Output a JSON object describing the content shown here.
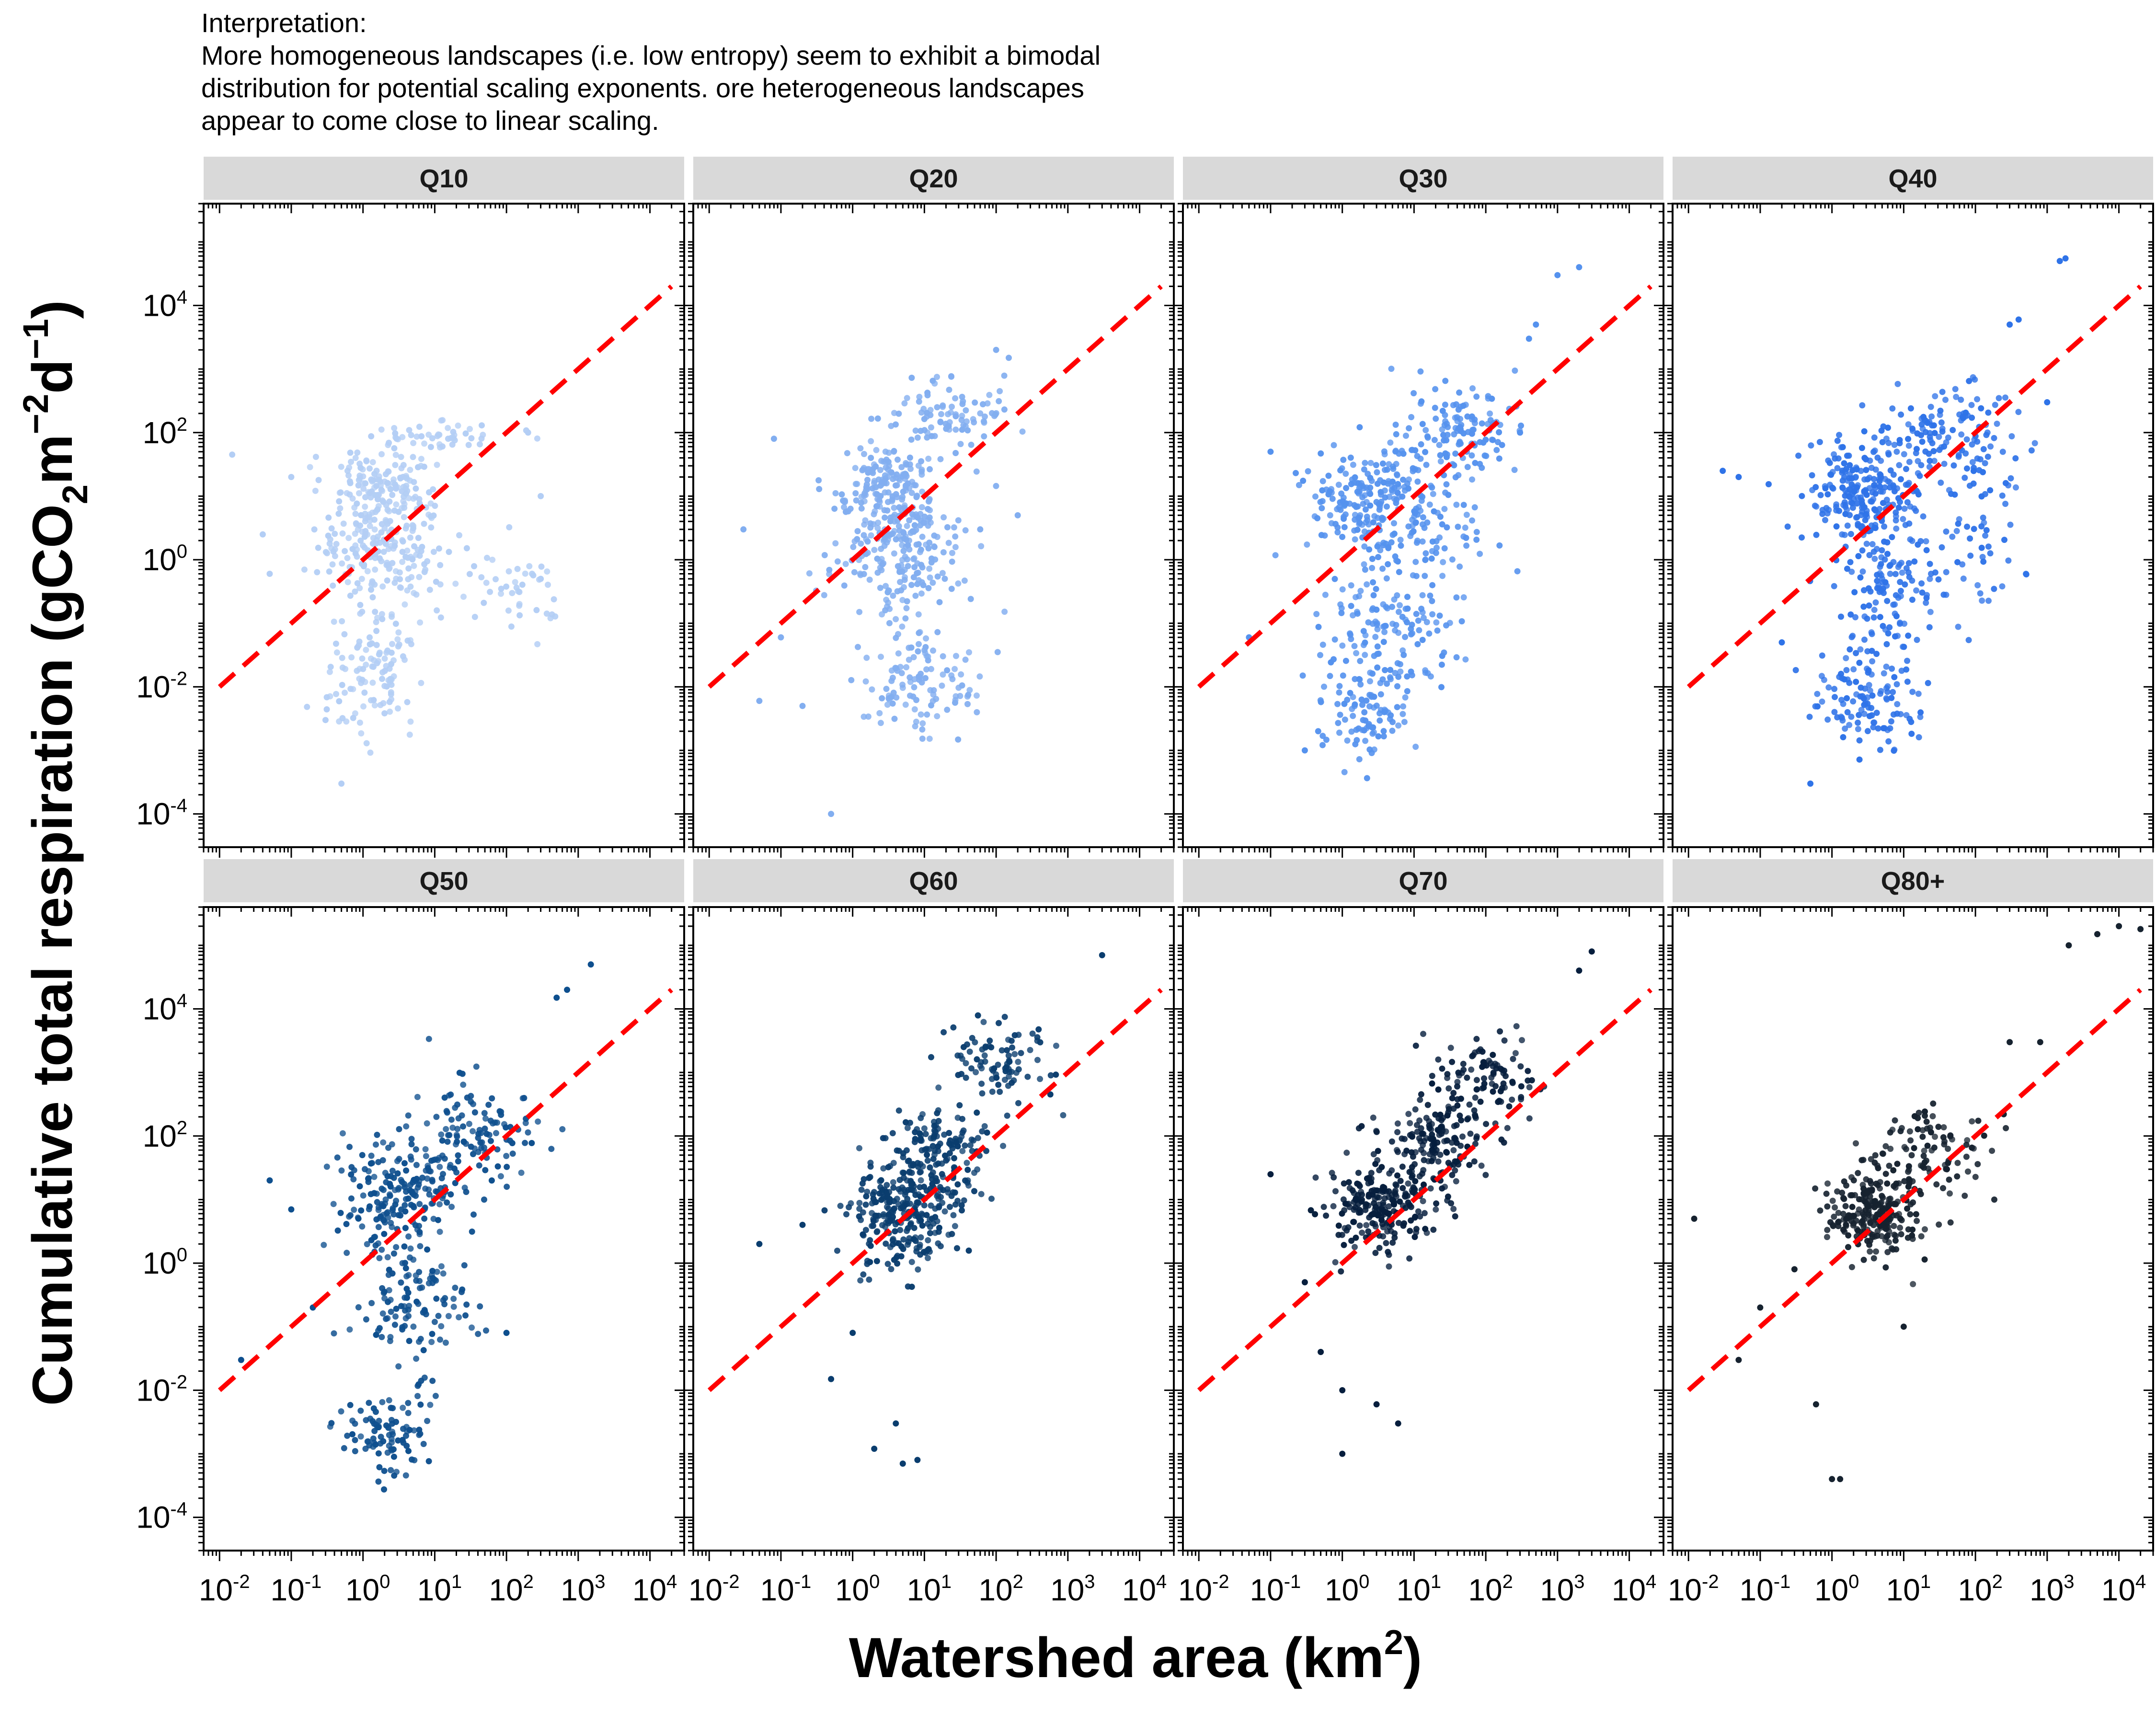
{
  "interpretation": {
    "heading": "Interpretation:",
    "lines": [
      "More homogeneous landscapes (i.e. low entropy) seem to exhibit a bimodal",
      "distribution for potential scaling exponents. ore heterogeneous landscapes",
      "appear to come close to linear scaling."
    ]
  },
  "chart_data": {
    "type": "scatter",
    "xscale": "log",
    "yscale": "log",
    "xlim": [
      0.006,
      30000
    ],
    "ylim": [
      3e-05,
      400000
    ],
    "xticks": [
      0.01,
      0.1,
      1,
      10,
      100,
      1000,
      10000
    ],
    "yticks": [
      0.0001,
      0.01,
      1,
      100,
      10000
    ],
    "x_tick_labels": [
      {
        "base": "10",
        "exp": "-2"
      },
      {
        "base": "10",
        "exp": "-1"
      },
      {
        "base": "10",
        "exp": "0"
      },
      {
        "base": "10",
        "exp": "1"
      },
      {
        "base": "10",
        "exp": "2"
      },
      {
        "base": "10",
        "exp": "3"
      },
      {
        "base": "10",
        "exp": "4"
      }
    ],
    "y_tick_labels": [
      {
        "base": "10",
        "exp": "-4"
      },
      {
        "base": "10",
        "exp": "-2"
      },
      {
        "base": "10",
        "exp": "0"
      },
      {
        "base": "10",
        "exp": "2"
      },
      {
        "base": "10",
        "exp": "4"
      }
    ],
    "xlabel": {
      "main": "Watershed area (km",
      "sup": "2",
      "end": ")"
    },
    "ylabel": {
      "parts": [
        {
          "text": "Cumulative total respiration (gCO"
        },
        {
          "text": "2",
          "shift": "sub"
        },
        {
          "text": "m"
        },
        {
          "text": "−2",
          "shift": "super"
        },
        {
          "text": "d"
        },
        {
          "text": "−1",
          "shift": "super"
        },
        {
          "text": ")"
        }
      ]
    },
    "reference_line": {
      "description": "linear scaling (slope 1)",
      "color": "#ff0000",
      "style": "dashed",
      "x": [
        0.01,
        20000
      ],
      "y": [
        0.01,
        20000
      ]
    },
    "panels": [
      {
        "label": "Q10",
        "color": "#b3cef5",
        "clusters": [
          {
            "cx": 0.3,
            "cy": 0.3,
            "sx": 0.45,
            "sy": 0.55,
            "n": 230
          },
          {
            "cx": 0.35,
            "cy": 1.25,
            "sx": 0.35,
            "sy": 0.25,
            "n": 110
          },
          {
            "cx": 0.1,
            "cy": -1.8,
            "sx": 0.35,
            "sy": 0.45,
            "n": 110
          },
          {
            "cx": 1.0,
            "cy": 1.95,
            "sx": 0.45,
            "sy": 0.12,
            "n": 40
          },
          {
            "cx": 2.2,
            "cy": -0.5,
            "sx": 0.25,
            "sy": 0.35,
            "n": 40
          }
        ],
        "points": [
          [
            0.015,
            45
          ],
          [
            0.04,
            2.5
          ],
          [
            0.05,
            0.6
          ],
          [
            0.1,
            20
          ],
          [
            0.3,
            0.003
          ],
          [
            0.5,
            0.0003
          ],
          [
            200,
            100
          ],
          [
            300,
            10
          ],
          [
            300,
            0.5
          ]
        ]
      },
      {
        "label": "Q20",
        "color": "#82aef0",
        "clusters": [
          {
            "cx": 0.6,
            "cy": 0.2,
            "sx": 0.45,
            "sy": 0.6,
            "n": 230
          },
          {
            "cx": 0.5,
            "cy": 1.2,
            "sx": 0.35,
            "sy": 0.3,
            "n": 140
          },
          {
            "cx": 1.0,
            "cy": -1.9,
            "sx": 0.45,
            "sy": 0.45,
            "n": 110
          },
          {
            "cx": 1.3,
            "cy": 2.3,
            "sx": 0.45,
            "sy": 0.25,
            "n": 90
          }
        ],
        "points": [
          [
            0.03,
            3
          ],
          [
            0.05,
            0.006
          ],
          [
            0.08,
            80
          ],
          [
            0.1,
            0.06
          ],
          [
            0.2,
            0.005
          ],
          [
            0.5,
            0.0001
          ],
          [
            60,
            3
          ],
          [
            100,
            2000
          ],
          [
            150,
            1500
          ],
          [
            200,
            5
          ]
        ]
      },
      {
        "label": "Q30",
        "color": "#5592ee",
        "clusters": [
          {
            "cx": 0.4,
            "cy": 0.9,
            "sx": 0.45,
            "sy": 0.45,
            "n": 210
          },
          {
            "cx": 0.6,
            "cy": -1.2,
            "sx": 0.45,
            "sy": 0.55,
            "n": 140
          },
          {
            "cx": 0.3,
            "cy": -2.5,
            "sx": 0.3,
            "sy": 0.4,
            "n": 80
          },
          {
            "cx": 1.6,
            "cy": 2.0,
            "sx": 0.45,
            "sy": 0.35,
            "n": 130
          },
          {
            "cx": 1.3,
            "cy": 0.3,
            "sx": 0.5,
            "sy": 0.5,
            "n": 70
          }
        ],
        "points": [
          [
            0.05,
            0.06
          ],
          [
            0.1,
            50
          ],
          [
            0.3,
            0.001
          ],
          [
            300,
            100
          ],
          [
            400,
            3000
          ],
          [
            1000,
            30000
          ],
          [
            2000,
            40000
          ],
          [
            500,
            5000
          ]
        ]
      },
      {
        "label": "Q40",
        "color": "#2f73e8",
        "clusters": [
          {
            "cx": 0.4,
            "cy": 1.0,
            "sx": 0.4,
            "sy": 0.4,
            "n": 220
          },
          {
            "cx": 0.8,
            "cy": -0.5,
            "sx": 0.45,
            "sy": 0.5,
            "n": 120
          },
          {
            "cx": 0.5,
            "cy": -2.2,
            "sx": 0.35,
            "sy": 0.5,
            "n": 120
          },
          {
            "cx": 1.5,
            "cy": 1.9,
            "sx": 0.5,
            "sy": 0.4,
            "n": 140
          },
          {
            "cx": 2.1,
            "cy": 0.3,
            "sx": 0.3,
            "sy": 0.6,
            "n": 50
          }
        ],
        "points": [
          [
            0.03,
            25
          ],
          [
            0.05,
            20
          ],
          [
            0.2,
            0.05
          ],
          [
            0.5,
            0.0003
          ],
          [
            300,
            5000
          ],
          [
            400,
            6000
          ],
          [
            1500,
            50000
          ],
          [
            1800,
            55000
          ],
          [
            1000,
            300
          ]
        ]
      },
      {
        "label": "Q50",
        "color": "#0e4f8e",
        "clusters": [
          {
            "cx": 0.5,
            "cy": 1.0,
            "sx": 0.4,
            "sy": 0.45,
            "n": 200
          },
          {
            "cx": 0.7,
            "cy": -0.7,
            "sx": 0.4,
            "sy": 0.5,
            "n": 110
          },
          {
            "cx": 0.3,
            "cy": -2.7,
            "sx": 0.3,
            "sy": 0.35,
            "n": 90
          },
          {
            "cx": 1.6,
            "cy": 2.0,
            "sx": 0.45,
            "sy": 0.45,
            "n": 120
          }
        ],
        "points": [
          [
            0.02,
            0.03
          ],
          [
            0.05,
            20
          ],
          [
            0.1,
            7
          ],
          [
            0.2,
            0.2
          ],
          [
            100,
            0.08
          ],
          [
            500,
            15000
          ],
          [
            1500,
            50000
          ],
          [
            700,
            20000
          ]
        ]
      },
      {
        "label": "Q60",
        "color": "#0a3d6e",
        "clusters": [
          {
            "cx": 0.7,
            "cy": 0.8,
            "sx": 0.35,
            "sy": 0.4,
            "n": 260
          },
          {
            "cx": 1.2,
            "cy": 1.7,
            "sx": 0.35,
            "sy": 0.4,
            "n": 140
          },
          {
            "cx": 2.0,
            "cy": 3.2,
            "sx": 0.4,
            "sy": 0.35,
            "n": 90
          }
        ],
        "points": [
          [
            0.05,
            2
          ],
          [
            0.2,
            4
          ],
          [
            0.5,
            0.015
          ],
          [
            1,
            0.08
          ],
          [
            2,
            0.0012
          ],
          [
            4,
            0.003
          ],
          [
            5,
            0.0007
          ],
          [
            8,
            0.0008
          ],
          [
            3000,
            70000
          ]
        ]
      },
      {
        "label": "Q70",
        "color": "#061e3d",
        "clusters": [
          {
            "cx": 0.6,
            "cy": 0.9,
            "sx": 0.35,
            "sy": 0.35,
            "n": 230
          },
          {
            "cx": 1.3,
            "cy": 2.0,
            "sx": 0.4,
            "sy": 0.35,
            "n": 150
          },
          {
            "cx": 2.0,
            "cy": 3.0,
            "sx": 0.35,
            "sy": 0.3,
            "n": 90
          }
        ],
        "points": [
          [
            0.1,
            25
          ],
          [
            0.3,
            0.5
          ],
          [
            0.5,
            0.04
          ],
          [
            1,
            0.001
          ],
          [
            1,
            0.01
          ],
          [
            3,
            0.006
          ],
          [
            6,
            0.003
          ],
          [
            3000,
            80000
          ],
          [
            2000,
            40000
          ]
        ]
      },
      {
        "label": "Q80+",
        "color": "#16222f",
        "clusters": [
          {
            "cx": 0.6,
            "cy": 0.8,
            "sx": 0.35,
            "sy": 0.35,
            "n": 230
          },
          {
            "cx": 1.3,
            "cy": 1.7,
            "sx": 0.4,
            "sy": 0.35,
            "n": 100
          }
        ],
        "points": [
          [
            0.012,
            5
          ],
          [
            0.05,
            0.03
          ],
          [
            0.1,
            0.2
          ],
          [
            0.3,
            0.8
          ],
          [
            0.6,
            0.006
          ],
          [
            1,
            0.0004
          ],
          [
            1.3,
            0.0004
          ],
          [
            10,
            0.1
          ],
          [
            40,
            30
          ],
          [
            300,
            3000
          ],
          [
            800,
            3000
          ],
          [
            2000,
            100000
          ],
          [
            5000,
            150000
          ],
          [
            10000,
            200000
          ],
          [
            20000,
            180000
          ]
        ]
      }
    ]
  }
}
